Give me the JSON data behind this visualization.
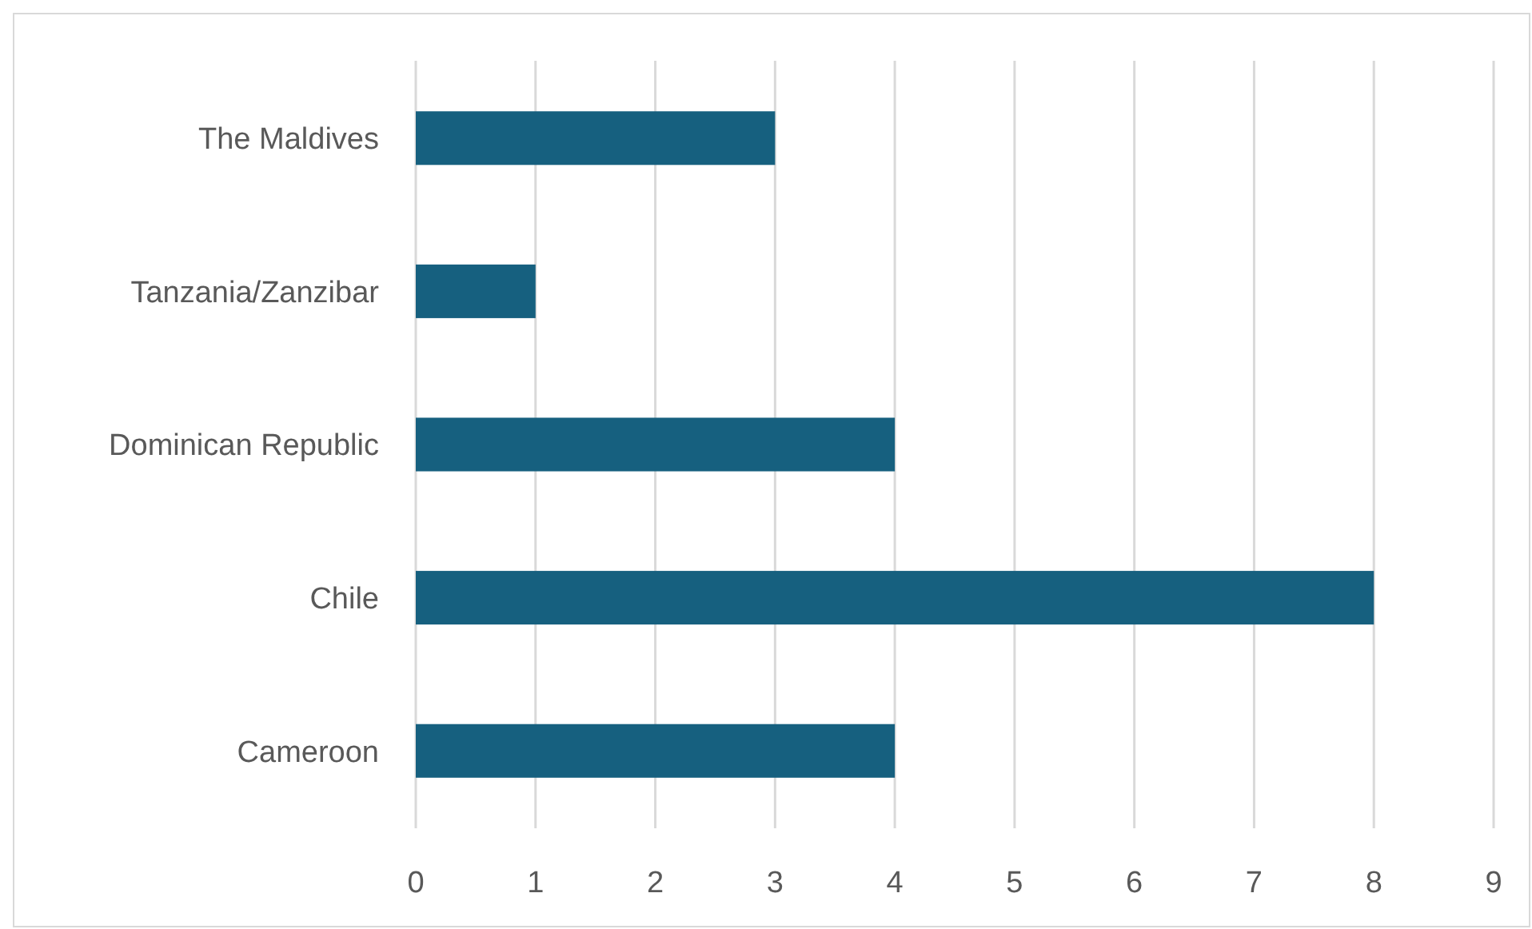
{
  "chart_data": {
    "type": "bar",
    "orientation": "horizontal",
    "categories": [
      "The Maldives",
      "Tanzania/Zanzibar",
      "Dominican Republic",
      "Chile",
      "Cameroon"
    ],
    "values": [
      3,
      1,
      4,
      8,
      4
    ],
    "color": "#16607f",
    "xlim": [
      0,
      9
    ],
    "xticks": [
      0,
      1,
      2,
      3,
      4,
      5,
      6,
      7,
      8,
      9
    ],
    "grid": "x"
  }
}
